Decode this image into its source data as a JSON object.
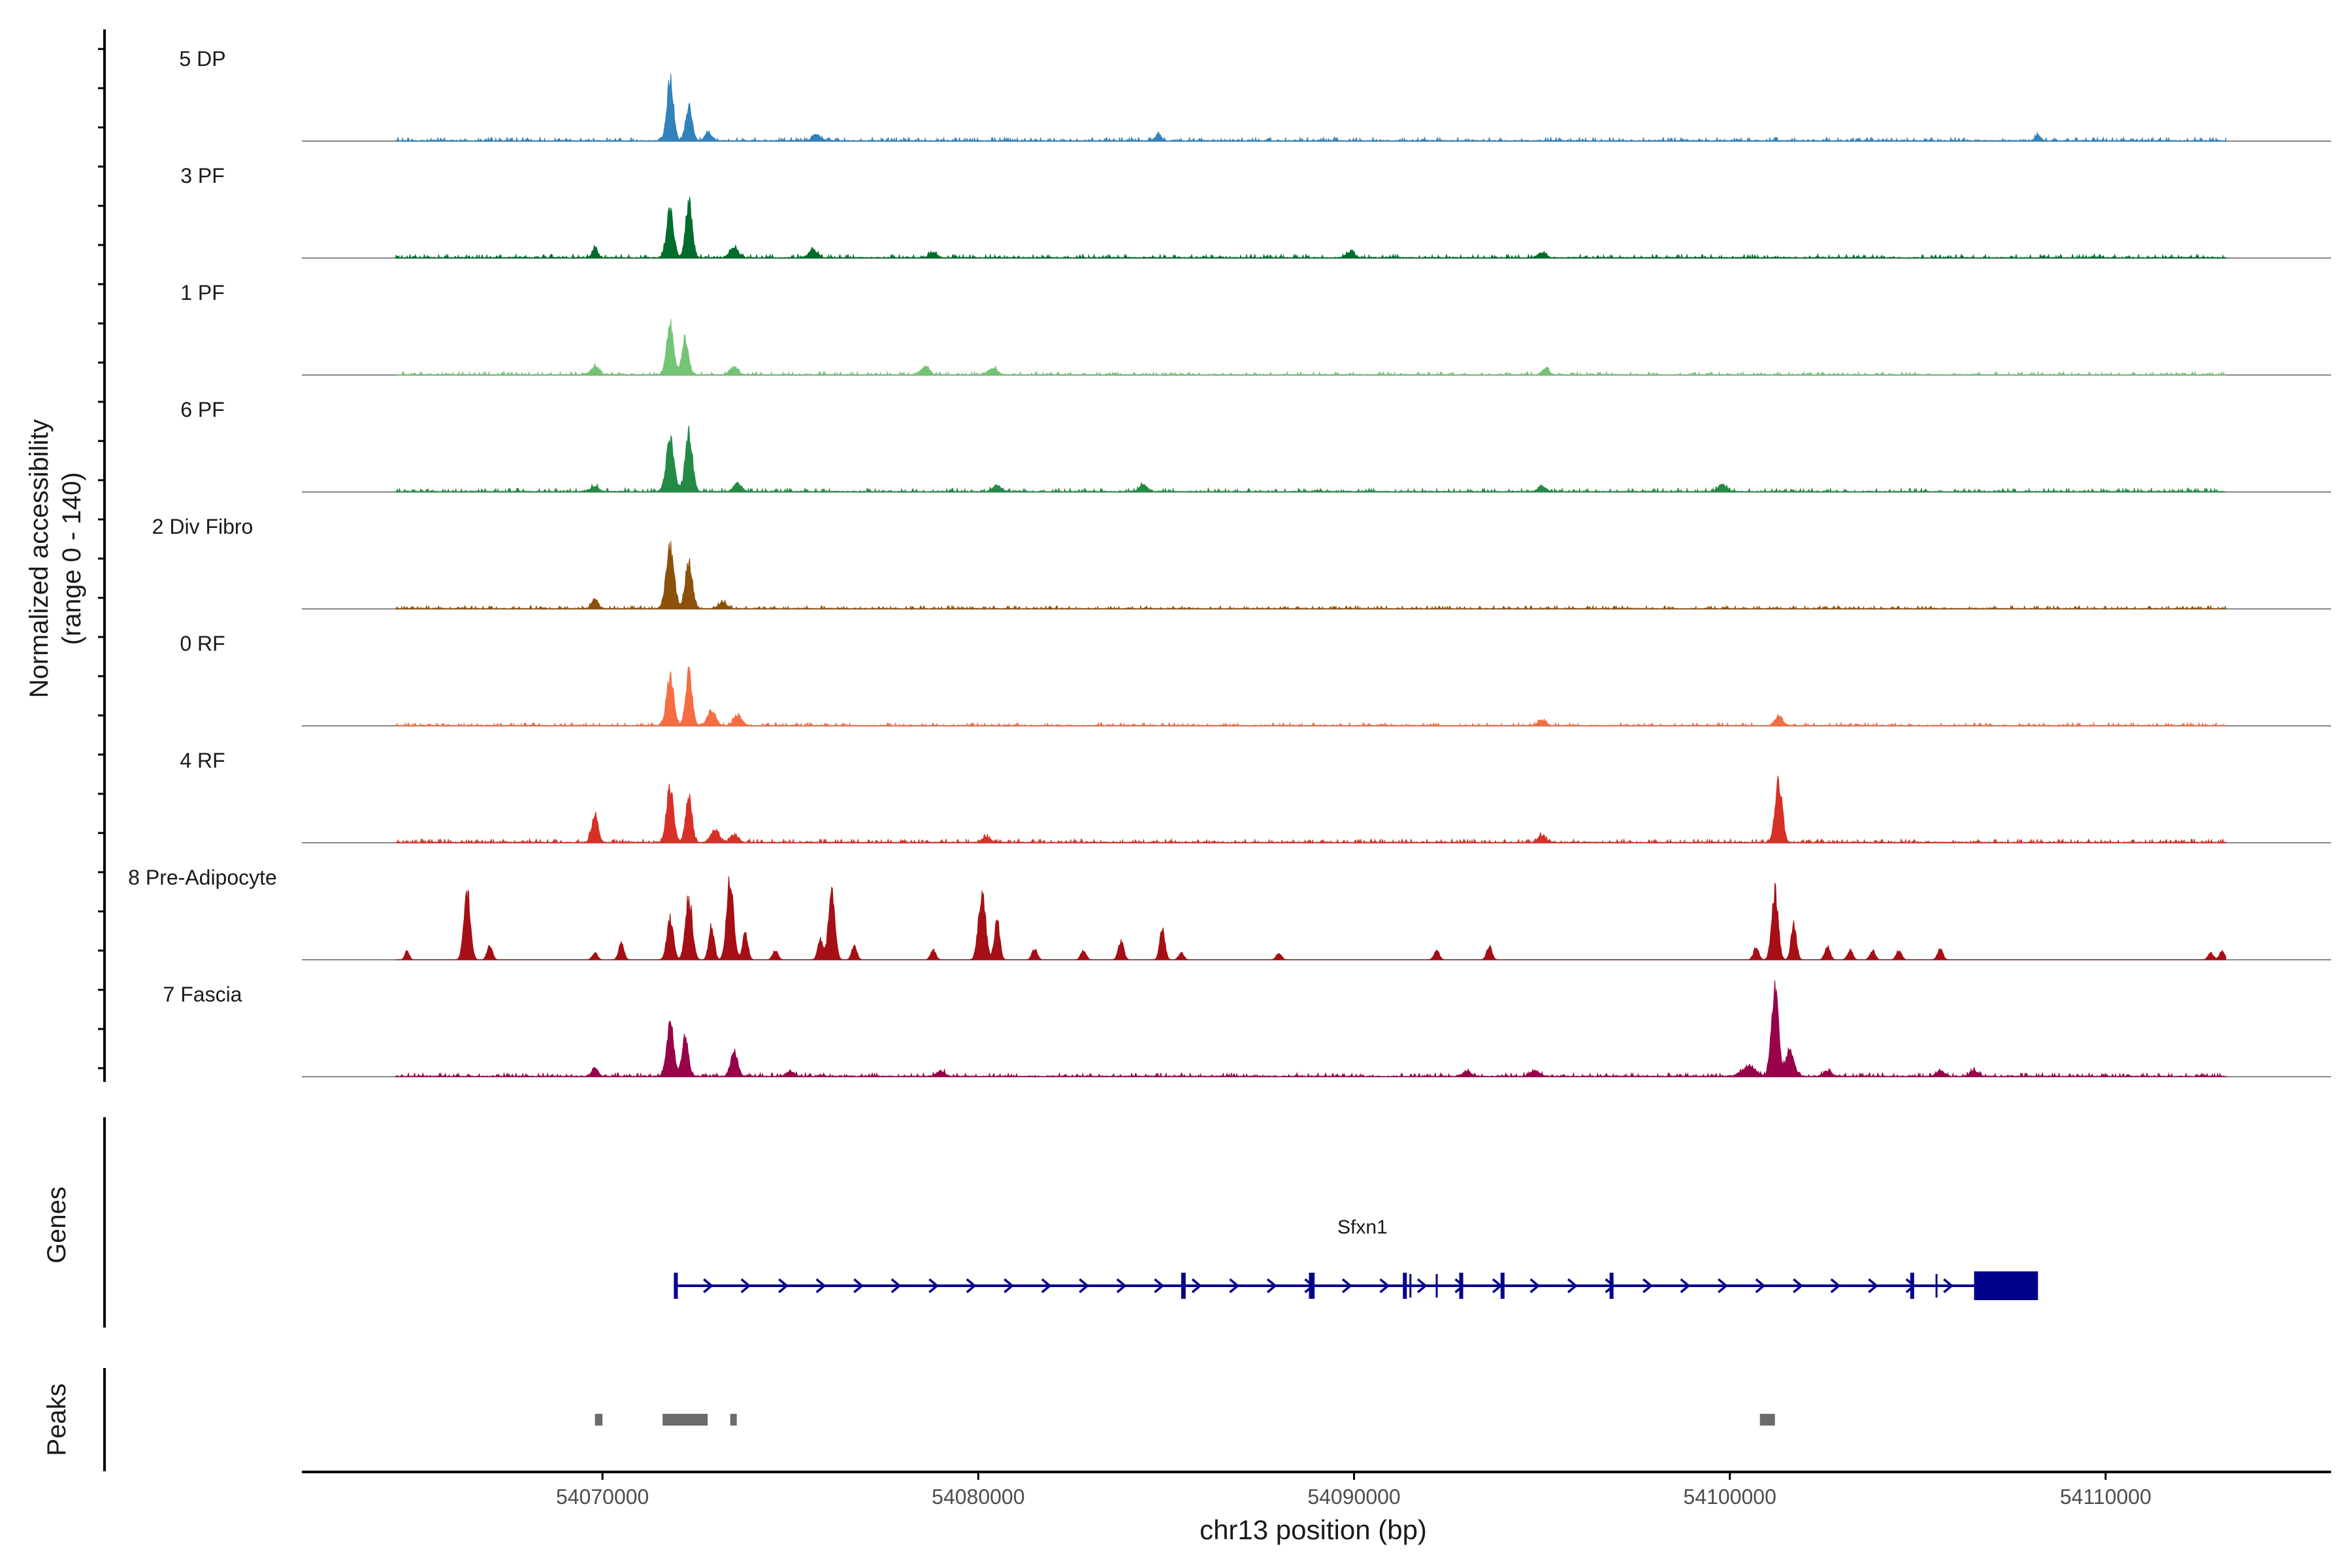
{
  "chart_data": {
    "type": "area",
    "title": "",
    "region": "chr13",
    "xlabel": "chr13 position (bp)",
    "ylabel": "Normalized accessibility",
    "ylabel_range": "(range 0 - 140)",
    "xlim": [
      54062000,
      54116000
    ],
    "ylim": [
      0,
      140
    ],
    "x_ticks": [
      54070000,
      54080000,
      54090000,
      54100000,
      54110000
    ],
    "x_tick_labels": [
      "54070000",
      "54080000",
      "54090000",
      "54100000",
      "54110000"
    ],
    "noise_start": 54064500,
    "noise_end": 54113200,
    "tracks": [
      {
        "name": "5 DP",
        "color": "#3182bd",
        "noise": 5,
        "peaks": [
          [
            54071800,
            90,
            120
          ],
          [
            54072300,
            50,
            120
          ],
          [
            54072800,
            14,
            100
          ],
          [
            54075700,
            9,
            150
          ],
          [
            54084800,
            10,
            100
          ],
          [
            54108200,
            8,
            100
          ]
        ]
      },
      {
        "name": "3 PF",
        "color": "#006d2c",
        "noise": 5,
        "peaks": [
          [
            54069800,
            14,
            100
          ],
          [
            54071800,
            70,
            130
          ],
          [
            54072300,
            82,
            120
          ],
          [
            54073500,
            16,
            150
          ],
          [
            54075600,
            12,
            150
          ],
          [
            54078800,
            8,
            150
          ],
          [
            54089900,
            8,
            150
          ],
          [
            54095000,
            7,
            150
          ]
        ]
      },
      {
        "name": "1 PF",
        "color": "#74c476",
        "noise": 4,
        "peaks": [
          [
            54069800,
            12,
            150
          ],
          [
            54071800,
            70,
            130
          ],
          [
            54072200,
            55,
            120
          ],
          [
            54073500,
            12,
            150
          ],
          [
            54078600,
            12,
            150
          ],
          [
            54080400,
            10,
            150
          ],
          [
            54095100,
            10,
            120
          ]
        ]
      },
      {
        "name": "6 PF",
        "color": "#238b45",
        "noise": 5,
        "peaks": [
          [
            54069800,
            8,
            150
          ],
          [
            54071800,
            72,
            150
          ],
          [
            54072300,
            86,
            130
          ],
          [
            54073600,
            12,
            150
          ],
          [
            54080500,
            9,
            150
          ],
          [
            54084400,
            10,
            150
          ],
          [
            54095000,
            8,
            150
          ],
          [
            54099800,
            10,
            150
          ]
        ]
      },
      {
        "name": "2 Div Fibro",
        "color": "#8c510a",
        "noise": 4,
        "peaks": [
          [
            54069800,
            14,
            120
          ],
          [
            54071800,
            88,
            150
          ],
          [
            54072300,
            70,
            130
          ],
          [
            54073200,
            9,
            150
          ]
        ]
      },
      {
        "name": "0 RF",
        "color": "#f46d43",
        "noise": 4,
        "peaks": [
          [
            54071800,
            75,
            130
          ],
          [
            54072300,
            80,
            120
          ],
          [
            54072900,
            22,
            150
          ],
          [
            54073600,
            16,
            150
          ],
          [
            54095000,
            8,
            150
          ],
          [
            54101300,
            12,
            150
          ]
        ]
      },
      {
        "name": "4 RF",
        "color": "#d73027",
        "noise": 5,
        "peaks": [
          [
            54069800,
            40,
            120
          ],
          [
            54071800,
            80,
            130
          ],
          [
            54072300,
            65,
            120
          ],
          [
            54073000,
            20,
            150
          ],
          [
            54073500,
            12,
            150
          ],
          [
            54080200,
            8,
            150
          ],
          [
            54095000,
            10,
            150
          ],
          [
            54101300,
            92,
            130
          ]
        ]
      },
      {
        "name": "8 Pre-Adipocyte",
        "color": "#a50f15",
        "noise": 0,
        "peaks": [
          [
            54064800,
            14,
            80
          ],
          [
            54066400,
            100,
            120
          ],
          [
            54067000,
            20,
            100
          ],
          [
            54069800,
            10,
            100
          ],
          [
            54070500,
            24,
            100
          ],
          [
            54071800,
            60,
            120
          ],
          [
            54072300,
            92,
            130
          ],
          [
            54072900,
            50,
            100
          ],
          [
            54073400,
            120,
            130
          ],
          [
            54073800,
            40,
            100
          ],
          [
            54074600,
            14,
            100
          ],
          [
            54075800,
            30,
            100
          ],
          [
            54076100,
            95,
            120
          ],
          [
            54076700,
            20,
            100
          ],
          [
            54078800,
            14,
            100
          ],
          [
            54080100,
            102,
            130
          ],
          [
            54080500,
            60,
            100
          ],
          [
            54081500,
            16,
            100
          ],
          [
            54082800,
            14,
            100
          ],
          [
            54083800,
            28,
            100
          ],
          [
            54084900,
            44,
            100
          ],
          [
            54085400,
            10,
            100
          ],
          [
            54088000,
            10,
            100
          ],
          [
            54092200,
            14,
            100
          ],
          [
            54093600,
            20,
            100
          ],
          [
            54100700,
            18,
            100
          ],
          [
            54101200,
            100,
            120
          ],
          [
            54101700,
            55,
            100
          ],
          [
            54102600,
            20,
            100
          ],
          [
            54103200,
            14,
            100
          ],
          [
            54103800,
            14,
            100
          ],
          [
            54104500,
            14,
            100
          ],
          [
            54105600,
            16,
            100
          ],
          [
            54112800,
            10,
            100
          ],
          [
            54113100,
            12,
            100
          ]
        ]
      },
      {
        "name": "7 Fascia",
        "color": "#98004a",
        "noise": 5,
        "peaks": [
          [
            54069800,
            12,
            120
          ],
          [
            54071800,
            78,
            130
          ],
          [
            54072200,
            55,
            120
          ],
          [
            54073500,
            36,
            130
          ],
          [
            54075000,
            8,
            150
          ],
          [
            54079000,
            8,
            150
          ],
          [
            54093000,
            8,
            150
          ],
          [
            54094800,
            8,
            150
          ],
          [
            54100500,
            14,
            250
          ],
          [
            54101200,
            132,
            130
          ],
          [
            54101600,
            40,
            150
          ],
          [
            54102600,
            8,
            150
          ],
          [
            54105600,
            8,
            150
          ],
          [
            54106500,
            8,
            150
          ]
        ]
      }
    ],
    "genes": [
      {
        "name": "Sfxn1",
        "strand": "+",
        "start": 54071900,
        "end": 54108200,
        "exons": [
          [
            54071900,
            54071950
          ],
          [
            54085400,
            54085520
          ],
          [
            54088800,
            54088950
          ],
          [
            54091300,
            54091380
          ],
          [
            54092800,
            54092850
          ],
          [
            54093900,
            54094000
          ],
          [
            54096800,
            54096850
          ],
          [
            54104800,
            54104850
          ],
          [
            54106500,
            54108200
          ]
        ],
        "intron_marks": [
          54091500,
          54092200,
          54105500
        ]
      }
    ],
    "peaks_track": [
      [
        54069800,
        54070000
      ],
      [
        54071600,
        54072800
      ],
      [
        54073400,
        54073550
      ],
      [
        54100800,
        54101200
      ]
    ],
    "panel_labels": {
      "genes": "Genes",
      "peaks": "Peaks"
    },
    "colors": {
      "baseline": "#888888",
      "gene": "#00008b",
      "peak": "#6b6b6b",
      "axis": "#000000"
    }
  }
}
